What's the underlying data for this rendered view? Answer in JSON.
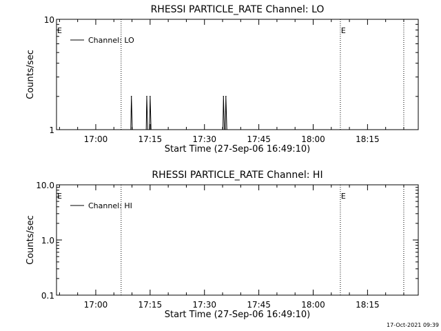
{
  "chart_data": [
    {
      "type": "line",
      "title": "RHESSI PARTICLE_RATE Channel: LO",
      "xlabel": "Start Time (27-Sep-06 16:49:10)",
      "ylabel": "Counts/sec",
      "y_scale": "log",
      "ylim": [
        1,
        10
      ],
      "y_ticks": [
        "1",
        "10"
      ],
      "x_ticks": [
        "17:00",
        "17:15",
        "17:30",
        "17:45",
        "18:00",
        "18:15"
      ],
      "xlim": [
        "16:49:10",
        "18:29:00"
      ],
      "grid": false,
      "legend_position": "top-left",
      "series": [
        {
          "name": "Channel: LO",
          "color": "#000000",
          "points": [
            {
              "t": "17:09:40",
              "v": 1
            },
            {
              "t": "17:09:50",
              "v": 2
            },
            {
              "t": "17:10:05",
              "v": 1
            },
            {
              "t": "17:13:55",
              "v": 1
            },
            {
              "t": "17:14:05",
              "v": 2
            },
            {
              "t": "17:14:20",
              "v": 1
            },
            {
              "t": "17:14:50",
              "v": 1
            },
            {
              "t": "17:15:00",
              "v": 2
            },
            {
              "t": "17:15:15",
              "v": 1
            },
            {
              "t": "17:35:05",
              "v": 1
            },
            {
              "t": "17:35:15",
              "v": 2
            },
            {
              "t": "17:35:30",
              "v": 1
            },
            {
              "t": "17:35:45",
              "v": 1
            },
            {
              "t": "17:35:55",
              "v": 2
            },
            {
              "t": "17:36:10",
              "v": 1
            }
          ]
        }
      ],
      "event_lines": [
        {
          "t": "16:49:10",
          "label": "E",
          "style": "none"
        },
        {
          "t": "17:07:00",
          "label": "",
          "style": "dotted"
        },
        {
          "t": "18:07:30",
          "label": "E",
          "style": "dotted"
        },
        {
          "t": "18:25:00",
          "label": "",
          "style": "dotted"
        }
      ]
    },
    {
      "type": "line",
      "title": "RHESSI PARTICLE_RATE Channel: HI",
      "xlabel": "Start Time (27-Sep-06 16:49:10)",
      "ylabel": "Counts/sec",
      "y_scale": "log",
      "ylim": [
        0.1,
        10
      ],
      "y_ticks": [
        "0.1",
        "1.0",
        "10.0"
      ],
      "x_ticks": [
        "17:00",
        "17:15",
        "17:30",
        "17:45",
        "18:00",
        "18:15"
      ],
      "xlim": [
        "16:49:10",
        "18:29:00"
      ],
      "grid": false,
      "legend_position": "top-left",
      "series": [
        {
          "name": "Channel: HI",
          "color": "#000000",
          "points": []
        }
      ],
      "event_lines": [
        {
          "t": "16:49:10",
          "label": "E",
          "style": "none"
        },
        {
          "t": "17:07:00",
          "label": "",
          "style": "dotted"
        },
        {
          "t": "18:07:30",
          "label": "E",
          "style": "dotted"
        },
        {
          "t": "18:25:00",
          "label": "",
          "style": "dotted"
        }
      ]
    }
  ],
  "footer": {
    "timestamp": "17-Oct-2021 09:39"
  }
}
